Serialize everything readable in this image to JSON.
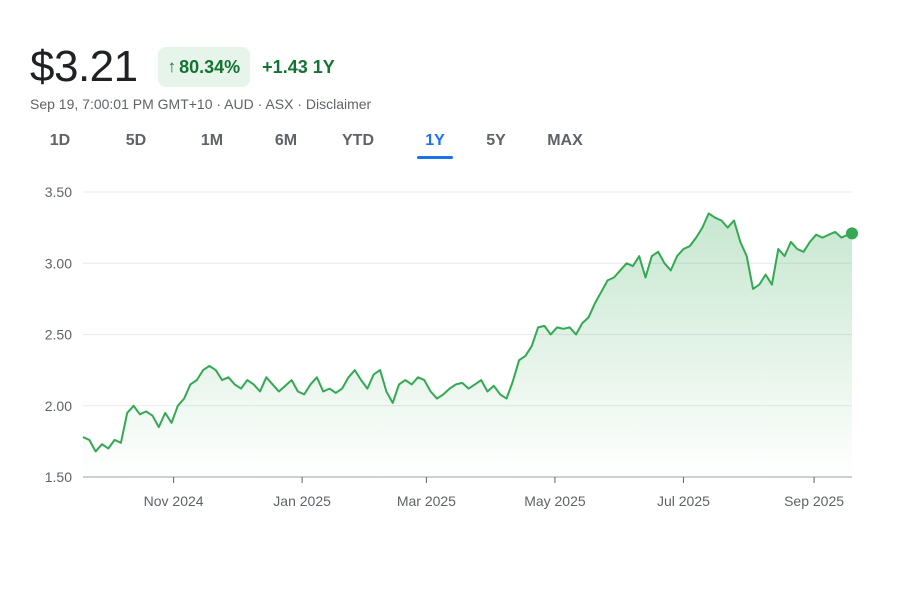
{
  "header": {
    "price": "$3.21",
    "change_arrow_icon": "arrow-up-icon",
    "change_percent": "80.34%",
    "change_abs": "+1.43 1Y"
  },
  "meta": {
    "timestamp": "Sep 19, 7:00:01 PM GMT+10",
    "currency": "AUD",
    "exchange": "ASX",
    "disclaimer": "Disclaimer",
    "separator": " · "
  },
  "ranges": {
    "items": [
      "1D",
      "5D",
      "1M",
      "6M",
      "YTD",
      "1Y",
      "5Y",
      "MAX"
    ],
    "selected": "1Y"
  },
  "colors": {
    "line": "#34a853",
    "fill_top": "#34a853",
    "grid": "#e8eaed",
    "positive_text": "#137333",
    "pill_bg": "#e6f4ea",
    "active_tab": "#1a73e8"
  },
  "chart_data": {
    "type": "area",
    "ylim": [
      1.5,
      3.5
    ],
    "yticks": [
      "3.50",
      "3.00",
      "2.50",
      "2.00",
      "1.50"
    ],
    "ytick_values": [
      3.5,
      3.0,
      2.5,
      2.0,
      1.5
    ],
    "xlim": [
      "2024-09-19",
      "2025-09-19"
    ],
    "xtick_labels": [
      "Nov 2024",
      "Jan 2025",
      "Mar 2025",
      "May 2025",
      "Jul 2025",
      "Sep 2025"
    ],
    "xtick_dates": [
      "2024-11-01",
      "2025-01-01",
      "2025-03-01",
      "2025-05-01",
      "2025-07-01",
      "2025-09-01"
    ],
    "grid": true,
    "series": [
      {
        "x": [
          "2024-09-19",
          "2024-09-22",
          "2024-09-25",
          "2024-09-28",
          "2024-10-01",
          "2024-10-04",
          "2024-10-07",
          "2024-10-10",
          "2024-10-13",
          "2024-10-16",
          "2024-10-19",
          "2024-10-22",
          "2024-10-25",
          "2024-10-28",
          "2024-10-31",
          "2024-11-03",
          "2024-11-06",
          "2024-11-09",
          "2024-11-12",
          "2024-11-15",
          "2024-11-18",
          "2024-11-21",
          "2024-11-24",
          "2024-11-27",
          "2024-11-30",
          "2024-12-03",
          "2024-12-06",
          "2024-12-09",
          "2024-12-12",
          "2024-12-15",
          "2024-12-18",
          "2024-12-21",
          "2024-12-24",
          "2024-12-27",
          "2024-12-30",
          "2025-01-02",
          "2025-01-05",
          "2025-01-08",
          "2025-01-11",
          "2025-01-14",
          "2025-01-17",
          "2025-01-20",
          "2025-01-23",
          "2025-01-26",
          "2025-01-29",
          "2025-02-01",
          "2025-02-04",
          "2025-02-07",
          "2025-02-10",
          "2025-02-13",
          "2025-02-16",
          "2025-02-19",
          "2025-02-22",
          "2025-02-25",
          "2025-02-28",
          "2025-03-03",
          "2025-03-06",
          "2025-03-09",
          "2025-03-12",
          "2025-03-15",
          "2025-03-18",
          "2025-03-21",
          "2025-03-24",
          "2025-03-27",
          "2025-03-30",
          "2025-04-02",
          "2025-04-05",
          "2025-04-08",
          "2025-04-11",
          "2025-04-14",
          "2025-04-17",
          "2025-04-20",
          "2025-04-23",
          "2025-04-26",
          "2025-04-29",
          "2025-05-02",
          "2025-05-05",
          "2025-05-08",
          "2025-05-11",
          "2025-05-14",
          "2025-05-17",
          "2025-05-20",
          "2025-05-23",
          "2025-05-26",
          "2025-05-29",
          "2025-06-01",
          "2025-06-04",
          "2025-06-07",
          "2025-06-10",
          "2025-06-13",
          "2025-06-16",
          "2025-06-19",
          "2025-06-22",
          "2025-06-25",
          "2025-06-28",
          "2025-07-01",
          "2025-07-04",
          "2025-07-07",
          "2025-07-10",
          "2025-07-13",
          "2025-07-16",
          "2025-07-19",
          "2025-07-22",
          "2025-07-25",
          "2025-07-28",
          "2025-07-31",
          "2025-08-03",
          "2025-08-06",
          "2025-08-09",
          "2025-08-12",
          "2025-08-15",
          "2025-08-18",
          "2025-08-21",
          "2025-08-24",
          "2025-08-27",
          "2025-08-30",
          "2025-09-02",
          "2025-09-05",
          "2025-09-08",
          "2025-09-11",
          "2025-09-14",
          "2025-09-17",
          "2025-09-19"
        ],
        "values": [
          1.78,
          1.76,
          1.68,
          1.73,
          1.7,
          1.76,
          1.74,
          1.95,
          2.0,
          1.94,
          1.96,
          1.93,
          1.85,
          1.95,
          1.88,
          2.0,
          2.05,
          2.15,
          2.18,
          2.25,
          2.28,
          2.25,
          2.18,
          2.2,
          2.15,
          2.12,
          2.18,
          2.15,
          2.1,
          2.2,
          2.15,
          2.1,
          2.14,
          2.18,
          2.1,
          2.08,
          2.15,
          2.2,
          2.1,
          2.12,
          2.09,
          2.12,
          2.2,
          2.25,
          2.18,
          2.12,
          2.22,
          2.25,
          2.1,
          2.02,
          2.15,
          2.18,
          2.15,
          2.2,
          2.18,
          2.1,
          2.05,
          2.08,
          2.12,
          2.15,
          2.16,
          2.12,
          2.15,
          2.18,
          2.1,
          2.14,
          2.08,
          2.05,
          2.17,
          2.32,
          2.35,
          2.42,
          2.55,
          2.56,
          2.5,
          2.55,
          2.54,
          2.55,
          2.5,
          2.58,
          2.62,
          2.72,
          2.8,
          2.88,
          2.9,
          2.95,
          3.0,
          2.98,
          3.05,
          2.9,
          3.05,
          3.08,
          3.0,
          2.95,
          3.05,
          3.1,
          3.12,
          3.18,
          3.25,
          3.35,
          3.32,
          3.3,
          3.25,
          3.3,
          3.15,
          3.05,
          2.82,
          2.85,
          2.92,
          2.85,
          3.1,
          3.05,
          3.15,
          3.1,
          3.08,
          3.15,
          3.2,
          3.18,
          3.2,
          3.22,
          3.18,
          3.2,
          3.21
        ]
      }
    ]
  }
}
